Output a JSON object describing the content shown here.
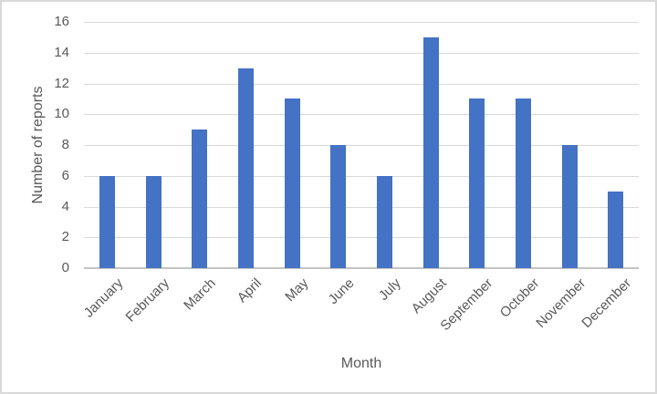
{
  "chart_data": {
    "type": "bar",
    "title": "",
    "xlabel": "Month",
    "ylabel": "Number of reports",
    "categories": [
      "January",
      "February",
      "March",
      "April",
      "May",
      "June",
      "July",
      "August",
      "September",
      "October",
      "November",
      "December"
    ],
    "values": [
      6,
      6,
      9,
      13,
      11,
      8,
      6,
      15,
      11,
      11,
      8,
      5
    ],
    "ylim": [
      0,
      16
    ],
    "yticks": [
      0,
      2,
      4,
      6,
      8,
      10,
      12,
      14,
      16
    ],
    "grid": true,
    "legend": false,
    "bar_color": "#4472C4",
    "gridline_color": "#D9D9D9",
    "axis_line_color": "#C3C3C3",
    "text_color": "#595959"
  }
}
